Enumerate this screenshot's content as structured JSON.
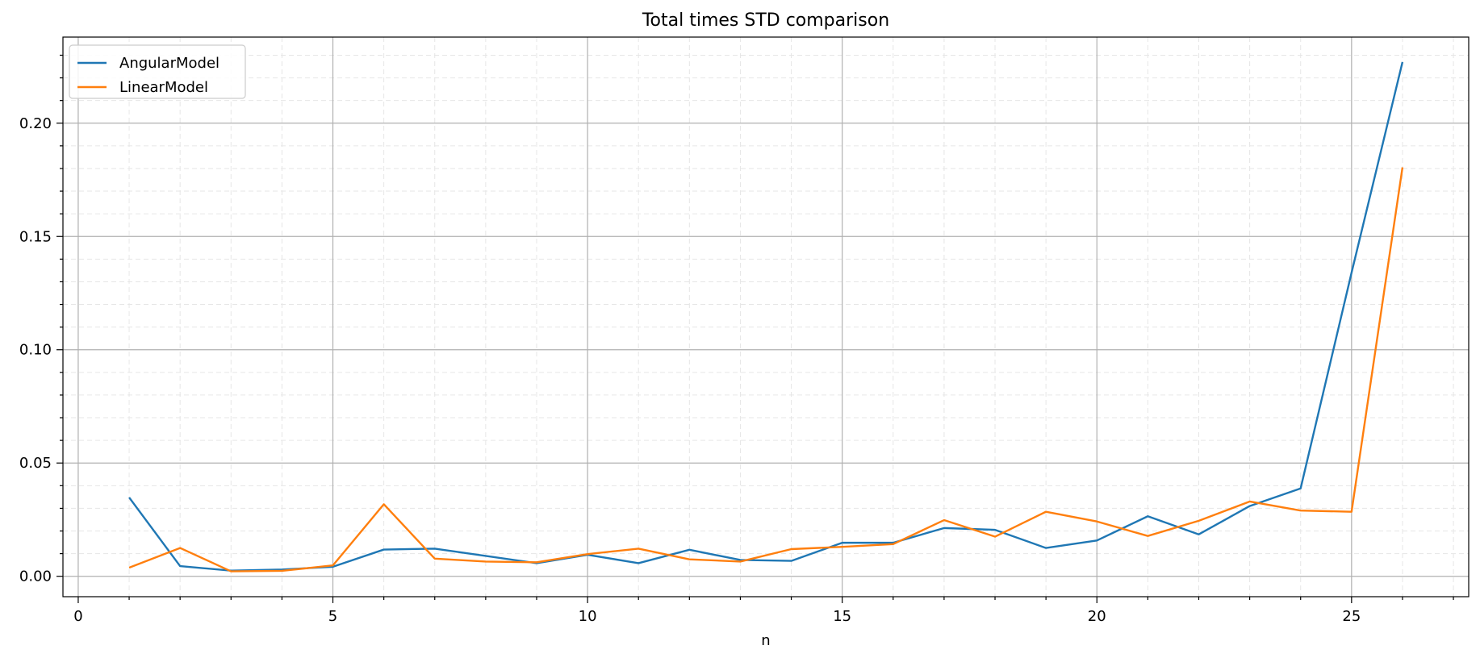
{
  "chart_data": {
    "type": "line",
    "title": "Total times STD comparison",
    "xlabel": "n",
    "ylabel": "",
    "xlim": [
      -0.3,
      27.3
    ],
    "ylim": [
      -0.009,
      0.238
    ],
    "x_ticks": [
      0,
      5,
      10,
      15,
      20,
      25
    ],
    "x_tick_labels": [
      "0",
      "5",
      "10",
      "15",
      "20",
      "25"
    ],
    "y_ticks": [
      0.0,
      0.05,
      0.1,
      0.15,
      0.2
    ],
    "y_tick_labels": [
      "0.00",
      "0.05",
      "0.10",
      "0.15",
      "0.20"
    ],
    "grid": true,
    "minor_grid": true,
    "legend_position": "top-left",
    "x": [
      1,
      2,
      3,
      4,
      5,
      6,
      7,
      8,
      9,
      10,
      11,
      12,
      13,
      14,
      15,
      16,
      17,
      18,
      19,
      20,
      21,
      22,
      23,
      24,
      25,
      26
    ],
    "series": [
      {
        "name": "AngularModel",
        "color": "#1f77b4",
        "values": [
          0.0348,
          0.0045,
          0.0025,
          0.003,
          0.0042,
          0.0118,
          0.0122,
          0.009,
          0.0058,
          0.0095,
          0.0058,
          0.0117,
          0.0072,
          0.0068,
          0.0148,
          0.0148,
          0.0213,
          0.0205,
          0.0125,
          0.0158,
          0.0265,
          0.0185,
          0.031,
          0.0388,
          0.134,
          0.227
        ]
      },
      {
        "name": "LinearModel",
        "color": "#ff7f0e",
        "values": [
          0.0038,
          0.0125,
          0.0022,
          0.0024,
          0.0048,
          0.0318,
          0.0078,
          0.0065,
          0.0062,
          0.0098,
          0.0122,
          0.0075,
          0.0065,
          0.012,
          0.013,
          0.0142,
          0.0248,
          0.0175,
          0.0285,
          0.0242,
          0.0178,
          0.0245,
          0.033,
          0.029,
          0.0285,
          0.1805
        ]
      }
    ]
  }
}
